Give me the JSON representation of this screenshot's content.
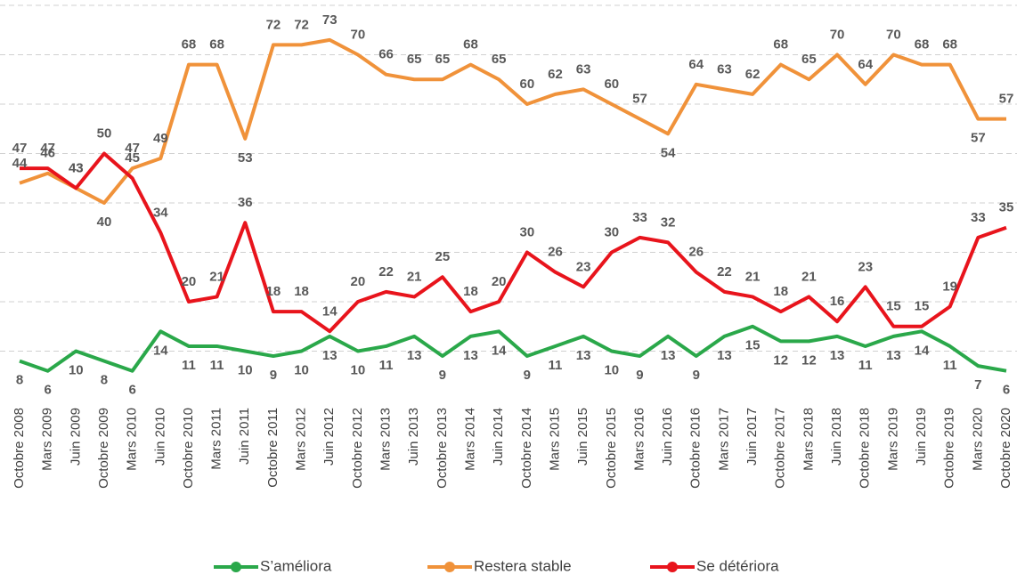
{
  "chart_data": {
    "type": "line",
    "categories": [
      "Octobre 2008",
      "Mars 2009",
      "Juin 2009",
      "Octobre 2009",
      "Mars 2010",
      "Juin 2010",
      "Octobre 2010",
      "Mars 2011",
      "Juin 2011",
      "Octobre 2011",
      "Mars 2012",
      "Juin 2012",
      "Octobre 2012",
      "Mars 2013",
      "Juin 2013",
      "Octobre 2013",
      "Mars 2014",
      "Juin 2014",
      "Octobre 2014",
      "Mars 2015",
      "Juin 2015",
      "Octobre 2015",
      "Mars 2016",
      "Juin 2016",
      "Octobre 2016",
      "Mars 2017",
      "Juin 2017",
      "Octobre 2017",
      "Mars 2018",
      "Juin 2018",
      "Octobre 2018",
      "Mars 2019",
      "Juin 2019",
      "Octobre 2019",
      "Mars 2020",
      "Octobre 2020"
    ],
    "series": [
      {
        "name": "S’améliora",
        "color": "#2aa84a",
        "values": [
          8,
          6,
          10,
          8,
          6,
          14,
          11,
          11,
          10,
          9,
          10,
          13,
          10,
          11,
          13,
          9,
          13,
          14,
          9,
          11,
          13,
          10,
          9,
          13,
          9,
          13,
          15,
          12,
          12,
          13,
          11,
          13,
          14,
          11,
          7,
          6
        ]
      },
      {
        "name": "Restera stable",
        "color": "#f0923a",
        "values": [
          44,
          46,
          43,
          40,
          47,
          49,
          68,
          68,
          53,
          72,
          72,
          73,
          70,
          66,
          65,
          65,
          68,
          65,
          60,
          62,
          63,
          60,
          57,
          54,
          64,
          63,
          62,
          68,
          65,
          70,
          64,
          70,
          68,
          68,
          57,
          57
        ]
      },
      {
        "name": "Se détériora",
        "color": "#e8141c",
        "values": [
          47,
          47,
          43,
          50,
          45,
          34,
          20,
          21,
          36,
          18,
          18,
          14,
          20,
          22,
          21,
          25,
          18,
          20,
          30,
          26,
          23,
          30,
          33,
          32,
          26,
          22,
          21,
          18,
          21,
          16,
          23,
          15,
          15,
          19,
          33,
          35
        ]
      }
    ],
    "ylim": [
      0,
      80
    ],
    "yticks": [
      10,
      20,
      30,
      40,
      50,
      60,
      70,
      80
    ],
    "grid": true,
    "legend": "bottom"
  }
}
